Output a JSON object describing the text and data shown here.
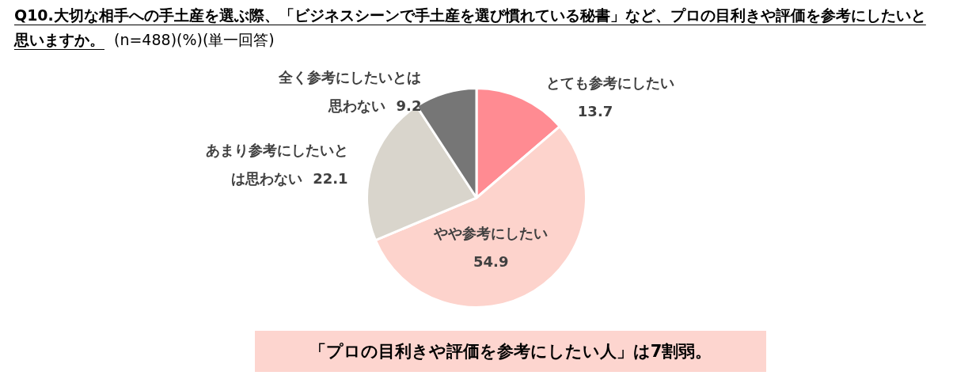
{
  "chart_data": {
    "type": "pie",
    "title": "Q10.大切な相手への手土産を選ぶ際、「ビジネスシーンで手土産を選び慣れている秘書」など、プロの目利きや評価を参考にしたいと思いますか。",
    "subtitle": "(n=488)(%)(単一回答)",
    "categories": [
      "とても参考にしたい",
      "やや参考にしたい",
      "あまり参考にしたいとは思わない",
      "全く参考にしたいとは思わない"
    ],
    "values": [
      13.7,
      54.9,
      22.1,
      9.2
    ],
    "colors": [
      "#ff8b92",
      "#fdd3cc",
      "#d9d5cc",
      "#767676"
    ],
    "data_labels": true,
    "legend": false,
    "annotations": [
      "「プロの目利きや評価を参考にしたい人」は7割弱。"
    ]
  }
}
